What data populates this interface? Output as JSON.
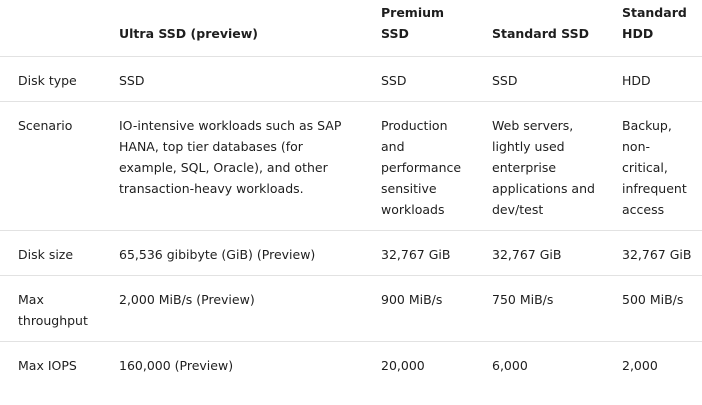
{
  "table": {
    "headers": [
      "Ultra SSD (preview)",
      "Premium SSD",
      "Standard SSD",
      "Standard HDD"
    ],
    "rows": [
      {
        "label": "Disk type",
        "cells": [
          "SSD",
          "SSD",
          "SSD",
          "HDD"
        ]
      },
      {
        "label": "Scenario",
        "cells": [
          "IO-intensive workloads such as SAP HANA, top tier databases (for example, SQL, Oracle), and other transaction-heavy workloads.",
          "Production and performance sensitive workloads",
          "Web servers, lightly used enterprise applications and dev/test",
          "Backup, non-critical, infrequent access"
        ]
      },
      {
        "label": "Disk size",
        "cells": [
          "65,536 gibibyte (GiB) (Preview)",
          "32,767 GiB",
          "32,767 GiB",
          "32,767 GiB"
        ]
      },
      {
        "label": "Max throughput",
        "cells": [
          "2,000 MiB/s (Preview)",
          "900 MiB/s",
          "750 MiB/s",
          "500 MiB/s"
        ]
      },
      {
        "label": "Max IOPS",
        "cells": [
          "160,000 (Preview)",
          "20,000",
          "6,000",
          "2,000"
        ]
      }
    ]
  }
}
